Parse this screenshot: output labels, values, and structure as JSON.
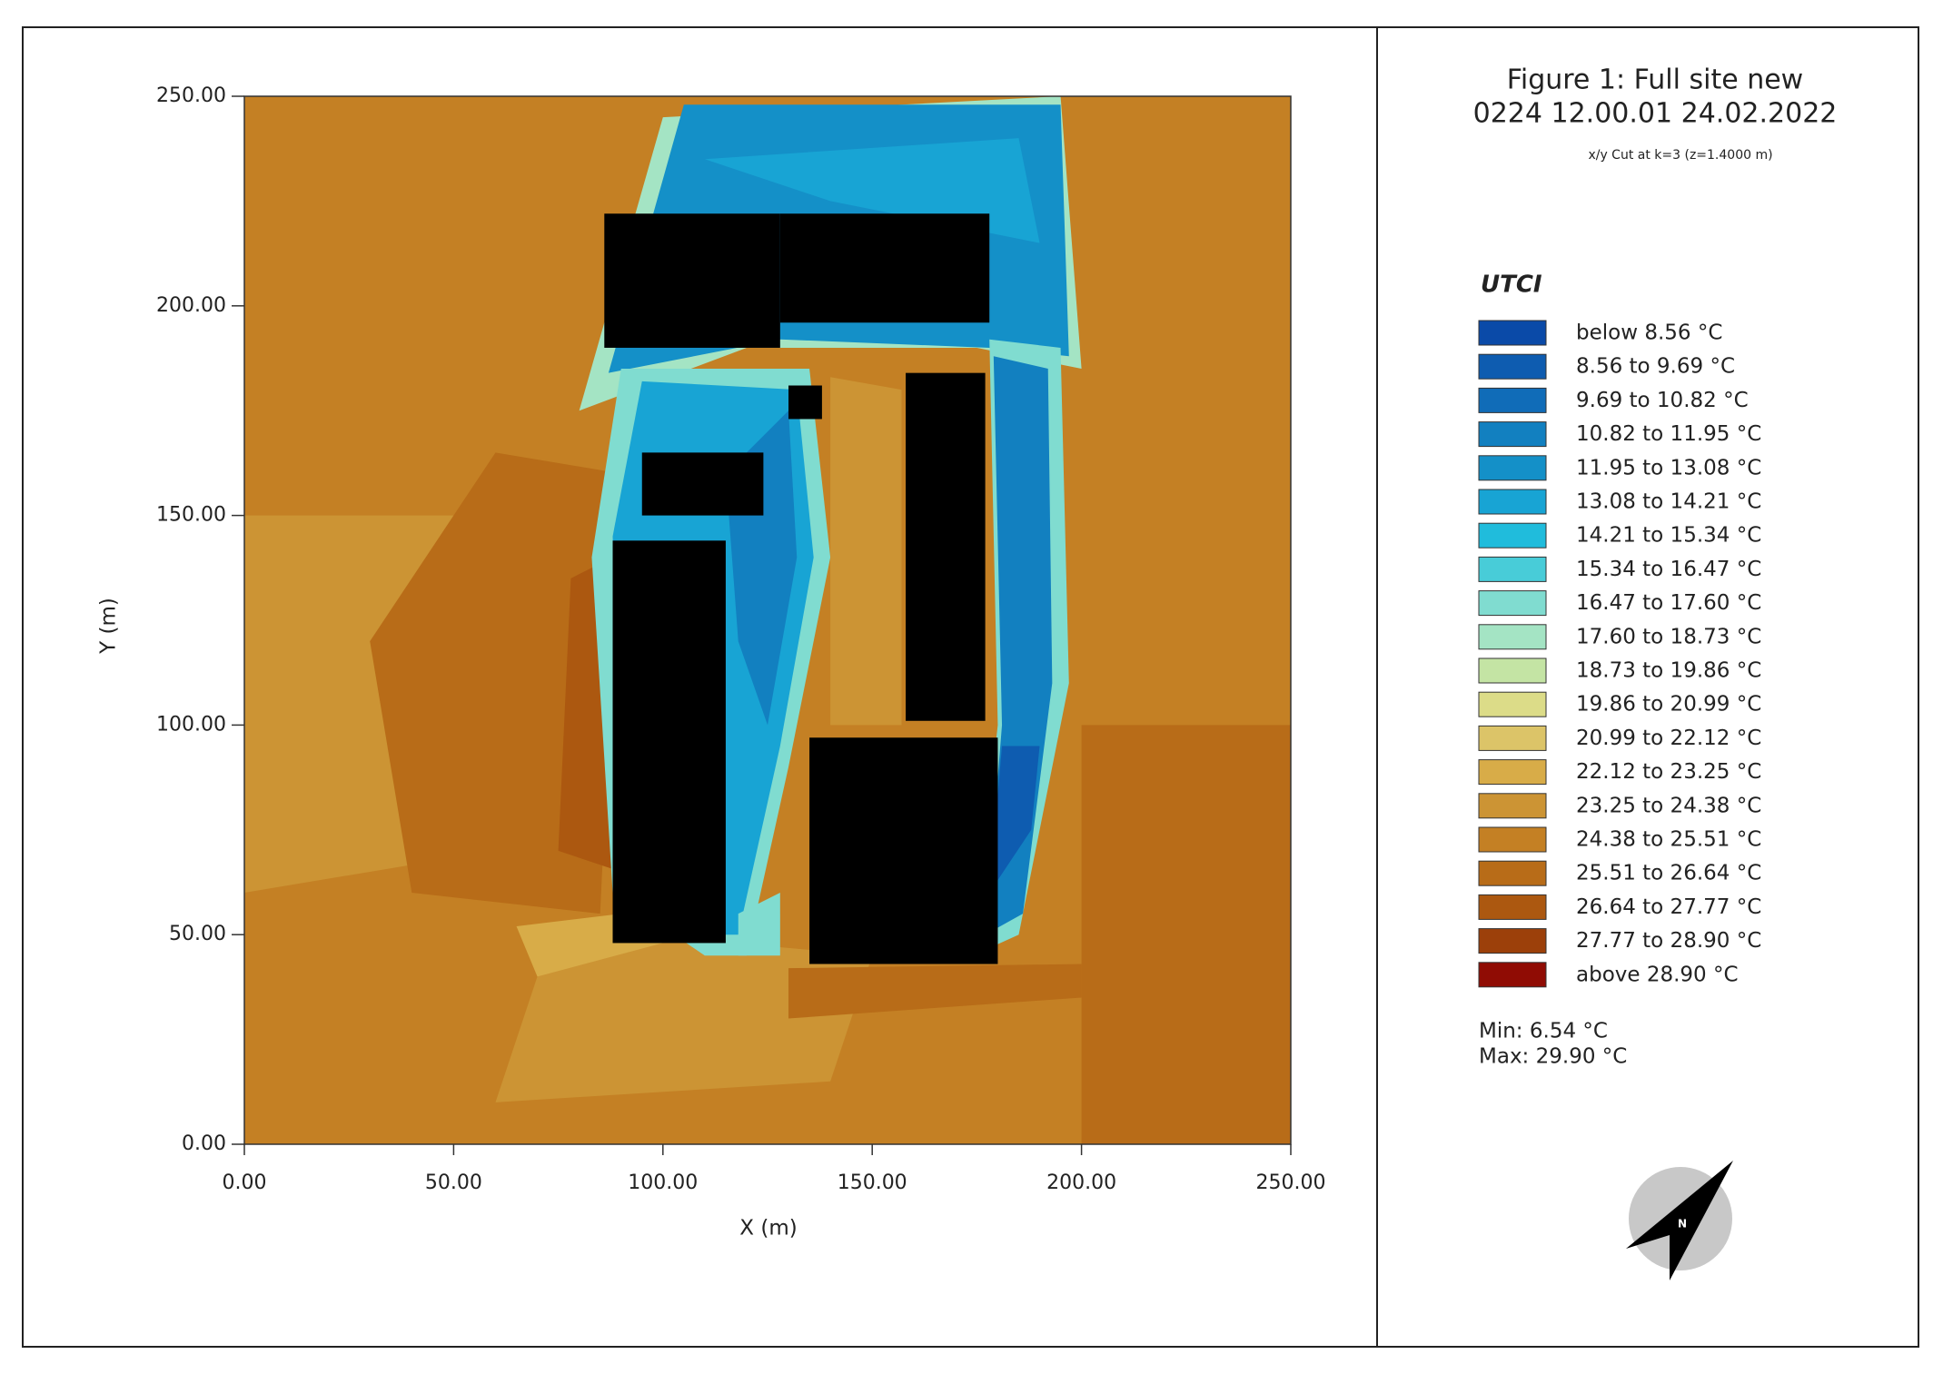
{
  "chart_data": {
    "type": "heatmap",
    "title": "Figure 1: Full site new",
    "subtitle": "0224 12.00.01 24.02.2022",
    "annotation": "x/y Cut at k=3 (z=1.4000 m)",
    "x_label": "X (m)",
    "y_label": "Y (m)",
    "xlim": [
      0,
      250
    ],
    "ylim": [
      0,
      250
    ],
    "xticks": [
      {
        "value": 0,
        "label": "0.00"
      },
      {
        "value": 50,
        "label": "50.00"
      },
      {
        "value": 100,
        "label": "100.00"
      },
      {
        "value": 150,
        "label": "150.00"
      },
      {
        "value": 200,
        "label": "200.00"
      },
      {
        "value": 250,
        "label": "250.00"
      }
    ],
    "yticks": [
      {
        "value": 0,
        "label": "0.00"
      },
      {
        "value": 50,
        "label": "50.00"
      },
      {
        "value": 100,
        "label": "100.00"
      },
      {
        "value": 150,
        "label": "150.00"
      },
      {
        "value": 200,
        "label": "200.00"
      },
      {
        "value": 250,
        "label": "250.00"
      }
    ],
    "legend": {
      "title": "UTCI",
      "items": [
        {
          "label": "below 8.56 °C",
          "color": "#0a4aa8"
        },
        {
          "label": "8.56 to 9.69 °C",
          "color": "#0e5cb0"
        },
        {
          "label": "9.69 to 10.82 °C",
          "color": "#106cb8"
        },
        {
          "label": "10.82 to 11.95 °C",
          "color": "#1280c0"
        },
        {
          "label": "11.95 to 13.08 °C",
          "color": "#1490c8"
        },
        {
          "label": "13.08 to 14.21 °C",
          "color": "#18a4d4"
        },
        {
          "label": "14.21 to 15.34 °C",
          "color": "#20bcdc"
        },
        {
          "label": "15.34 to 16.47 °C",
          "color": "#48ccd8"
        },
        {
          "label": "16.47 to 17.60 °C",
          "color": "#80dcd0"
        },
        {
          "label": "17.60 to 18.73 °C",
          "color": "#a4e4c4"
        },
        {
          "label": "18.73 to 19.86 °C",
          "color": "#c4e4a4"
        },
        {
          "label": "19.86 to 20.99 °C",
          "color": "#dcdc88"
        },
        {
          "label": "20.99 to 22.12 °C",
          "color": "#dcc468"
        },
        {
          "label": "22.12 to 23.25 °C",
          "color": "#d8ac48"
        },
        {
          "label": "23.25 to 24.38 °C",
          "color": "#cc9434"
        },
        {
          "label": "24.38 to 25.51 °C",
          "color": "#c48024"
        },
        {
          "label": "25.51 to 26.64 °C",
          "color": "#b86c18"
        },
        {
          "label": "26.64 to 27.77 °C",
          "color": "#ac5810"
        },
        {
          "label": "27.77 to 28.90 °C",
          "color": "#9c400a"
        },
        {
          "label": "above 28.90 °C",
          "color": "#900c04"
        }
      ]
    },
    "min_label": "Min: 6.54 °C",
    "max_label": "Max: 29.90 °C",
    "north_label": "N"
  }
}
